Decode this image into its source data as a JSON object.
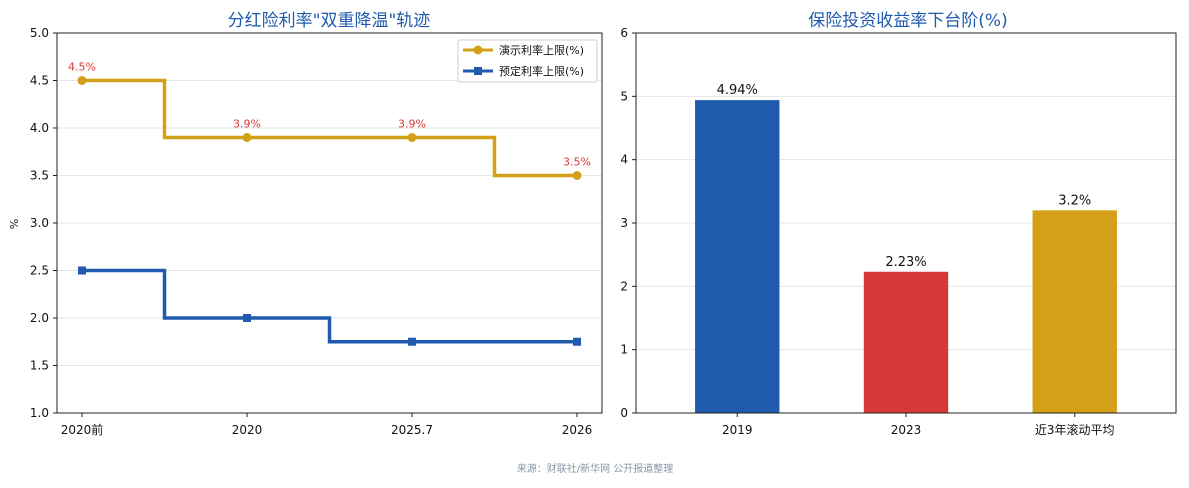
{
  "colors": {
    "gold": "#d4a017",
    "blue": "#1f5aad",
    "red": "#d9383a",
    "title": "#1f5aad",
    "grid": "#e6e6e6",
    "axis": "#222222",
    "source": "#8a96a8"
  },
  "source_note": "来源：财联社/新华网 公开报道整理",
  "chart_data": [
    {
      "type": "line",
      "title": "分红险利率\"双重降温\"轨迹",
      "xlabel": "",
      "ylabel": "%",
      "ylim": [
        1.0,
        5.0
      ],
      "grid": true,
      "legend_position": "top-right",
      "yticks": [
        "1.0",
        "1.5",
        "2.0",
        "2.5",
        "3.0",
        "3.5",
        "4.0",
        "4.5",
        "5.0"
      ],
      "categories": [
        "2020前",
        "2020",
        "2025.7",
        "2026"
      ],
      "step": "mid",
      "series": [
        {
          "name": "演示利率上限(%)",
          "values": [
            4.5,
            3.9,
            3.9,
            3.5
          ],
          "marker": "circle",
          "color": "#d4a017",
          "data_labels": [
            "4.5%",
            "3.9%",
            "3.9%",
            "3.5%"
          ]
        },
        {
          "name": "预定利率上限(%)",
          "values": [
            2.5,
            2.0,
            1.75,
            1.75
          ],
          "marker": "square",
          "color": "#1f5aad",
          "data_labels": []
        }
      ]
    },
    {
      "type": "bar",
      "title": "保险投资收益率下台阶(%)",
      "xlabel": "",
      "ylabel": "",
      "ylim": [
        0,
        6
      ],
      "grid": true,
      "yticks": [
        "0",
        "1",
        "2",
        "3",
        "4",
        "5",
        "6"
      ],
      "categories": [
        "2019",
        "2023",
        "近3年滚动平均"
      ],
      "values": [
        4.94,
        2.23,
        3.2
      ],
      "colors": [
        "#1f5aad",
        "#d9383a",
        "#d4a017"
      ],
      "data_labels": [
        "4.94%",
        "2.23%",
        "3.2%"
      ]
    }
  ]
}
